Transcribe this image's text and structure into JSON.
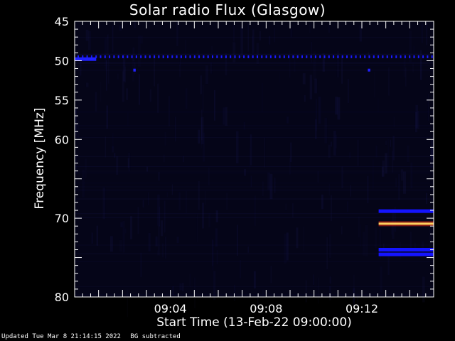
{
  "chart_data": {
    "type": "heatmap",
    "title": "Solar radio Flux (Glasgow)",
    "xlabel": "Start Time (13-Feb-22 09:00:00)",
    "ylabel": "Frequency [MHz]",
    "x_range_minutes": [
      0,
      15
    ],
    "ylim": [
      45,
      80
    ],
    "x_tick_labels": [
      {
        "minute": 4,
        "label": "09:04"
      },
      {
        "minute": 8,
        "label": "09:08"
      },
      {
        "minute": 12,
        "label": "09:12"
      }
    ],
    "y_tick_labels": [
      45,
      50,
      55,
      60,
      70,
      80
    ],
    "features": [
      {
        "kind": "dotted-band",
        "freq_mhz": 49.5,
        "t_start_min": 0,
        "t_end_min": 15,
        "color": "#1a1aff"
      },
      {
        "kind": "line",
        "freq_mhz": 49.8,
        "t_start_min": 0,
        "t_end_min": 0.9,
        "color": "#2020ff"
      },
      {
        "kind": "dot",
        "freq_mhz": 51.2,
        "t_start_min": 2.45,
        "t_end_min": 2.55,
        "color": "#2020ff"
      },
      {
        "kind": "dot",
        "freq_mhz": 51.2,
        "t_start_min": 12.25,
        "t_end_min": 12.35,
        "color": "#2020ff"
      },
      {
        "kind": "line",
        "freq_mhz": 69.1,
        "t_start_min": 12.7,
        "t_end_min": 15,
        "color": "#1414ff"
      },
      {
        "kind": "line",
        "freq_mhz": 70.7,
        "t_start_min": 12.7,
        "t_end_min": 15,
        "color": "#ff3a1a"
      },
      {
        "kind": "line",
        "freq_mhz": 74.0,
        "t_start_min": 12.7,
        "t_end_min": 15,
        "color": "#1414ff"
      },
      {
        "kind": "line",
        "freq_mhz": 74.6,
        "t_start_min": 12.7,
        "t_end_min": 15,
        "color": "#1414ff"
      }
    ],
    "colors": {
      "background": "#000000",
      "plot_background": "#050518",
      "axis": "#ffffff"
    }
  },
  "footer": {
    "updated": "Updated Tue Mar  8 21:14:15 2022",
    "note": "BG subtracted"
  }
}
